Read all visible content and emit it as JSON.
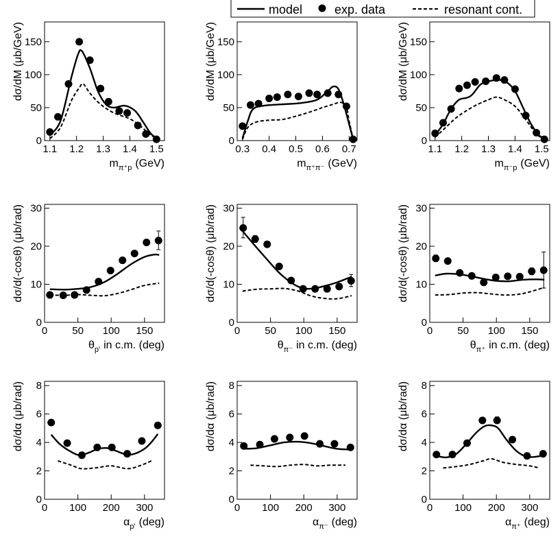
{
  "legend": {
    "model": "model",
    "data": "exp. data",
    "resonant": "resonant cont."
  },
  "chart_data": [
    {
      "type": "line",
      "panel": "row1-col1",
      "ylabel": "dσ/dM (μb/GeV)",
      "xlabel_main": "m",
      "xlabel_sub": "π⁺p",
      "xlabel_unit": "(GeV)",
      "xlim": [
        1.08,
        1.53
      ],
      "ylim": [
        0,
        180
      ],
      "xticks": [
        1.1,
        1.2,
        1.3,
        1.4,
        1.5
      ],
      "xtick_labels": [
        "1.1",
        "1.2",
        "1.3",
        "1.4",
        "1.5"
      ],
      "yticks": [
        0,
        50,
        100,
        150
      ],
      "ytick_labels": [
        "0",
        "50",
        "100",
        "150"
      ],
      "series": [
        {
          "name": "model",
          "x": [
            1.1,
            1.14,
            1.18,
            1.205,
            1.22,
            1.25,
            1.28,
            1.31,
            1.34,
            1.38,
            1.42,
            1.45,
            1.48,
            1.51
          ],
          "values": [
            8,
            30,
            95,
            130,
            136,
            110,
            75,
            55,
            50,
            53,
            45,
            28,
            10,
            2
          ]
        },
        {
          "name": "exp. data",
          "x": [
            1.1,
            1.13,
            1.17,
            1.21,
            1.25,
            1.29,
            1.32,
            1.36,
            1.39,
            1.43,
            1.46,
            1.5
          ],
          "values": [
            13,
            36,
            86,
            150,
            122,
            79,
            59,
            45,
            42,
            23,
            10,
            2
          ]
        },
        {
          "name": "resonant cont.",
          "x": [
            1.1,
            1.14,
            1.18,
            1.21,
            1.225,
            1.25,
            1.29,
            1.34,
            1.4,
            1.44,
            1.48,
            1.51
          ],
          "values": [
            3,
            20,
            60,
            80,
            86,
            72,
            55,
            42,
            33,
            22,
            8,
            2
          ]
        }
      ],
      "errors": []
    },
    {
      "type": "line",
      "panel": "row1-col2",
      "ylabel": "dσ/dM (μb/GeV)",
      "xlabel_main": "m",
      "xlabel_sub": "π⁺π⁻",
      "xlabel_unit": "(GeV)",
      "xlim": [
        0.28,
        0.73
      ],
      "ylim": [
        0,
        180
      ],
      "xticks": [
        0.3,
        0.4,
        0.5,
        0.6,
        0.7
      ],
      "xtick_labels": [
        "0.3",
        "0.4",
        "0.5",
        "0.6",
        "0.7"
      ],
      "yticks": [
        0,
        50,
        100,
        150
      ],
      "ytick_labels": [
        "0",
        "50",
        "100",
        "150"
      ],
      "series": [
        {
          "name": "model",
          "x": [
            0.3,
            0.32,
            0.34,
            0.38,
            0.45,
            0.52,
            0.58,
            0.62,
            0.64,
            0.66,
            0.68,
            0.7,
            0.715
          ],
          "values": [
            3,
            30,
            48,
            53,
            55,
            57,
            62,
            75,
            82,
            78,
            55,
            25,
            2
          ]
        },
        {
          "name": "exp. data",
          "x": [
            0.3,
            0.33,
            0.36,
            0.4,
            0.43,
            0.47,
            0.51,
            0.55,
            0.58,
            0.62,
            0.66,
            0.69,
            0.715
          ],
          "values": [
            22,
            54,
            56,
            64,
            66,
            70,
            67,
            72,
            70,
            72,
            70,
            52,
            2
          ]
        },
        {
          "name": "resonant cont.",
          "x": [
            0.3,
            0.32,
            0.35,
            0.4,
            0.45,
            0.5,
            0.55,
            0.6,
            0.64,
            0.67,
            0.69,
            0.7,
            0.715
          ],
          "values": [
            2,
            20,
            28,
            31,
            32,
            37,
            43,
            50,
            55,
            58,
            50,
            30,
            2
          ]
        }
      ],
      "errors": []
    },
    {
      "type": "line",
      "panel": "row1-col3",
      "ylabel": "dσ/dM (μb/GeV)",
      "xlabel_main": "m",
      "xlabel_sub": "π⁻p",
      "xlabel_unit": "(GeV)",
      "xlim": [
        1.08,
        1.53
      ],
      "ylim": [
        0,
        180
      ],
      "xticks": [
        1.1,
        1.2,
        1.3,
        1.4,
        1.5
      ],
      "xtick_labels": [
        "1.1",
        "1.2",
        "1.3",
        "1.4",
        "1.5"
      ],
      "yticks": [
        0,
        50,
        100,
        150
      ],
      "ytick_labels": [
        "0",
        "50",
        "100",
        "150"
      ],
      "series": [
        {
          "name": "model",
          "x": [
            1.1,
            1.13,
            1.16,
            1.19,
            1.22,
            1.24,
            1.27,
            1.3,
            1.34,
            1.37,
            1.4,
            1.43,
            1.46,
            1.49,
            1.51
          ],
          "values": [
            8,
            25,
            48,
            62,
            65,
            70,
            85,
            90,
            92,
            88,
            75,
            50,
            25,
            8,
            2
          ]
        },
        {
          "name": "exp. data",
          "x": [
            1.1,
            1.13,
            1.16,
            1.19,
            1.22,
            1.25,
            1.29,
            1.33,
            1.36,
            1.4,
            1.44,
            1.48,
            1.51
          ],
          "values": [
            11,
            27,
            48,
            79,
            84,
            89,
            90,
            95,
            92,
            78,
            38,
            12,
            2
          ]
        },
        {
          "name": "resonant cont.",
          "x": [
            1.1,
            1.14,
            1.18,
            1.22,
            1.26,
            1.3,
            1.33,
            1.36,
            1.4,
            1.44,
            1.48,
            1.51
          ],
          "values": [
            5,
            20,
            35,
            46,
            55,
            62,
            66,
            62,
            52,
            32,
            10,
            2
          ]
        }
      ],
      "errors": []
    },
    {
      "type": "line",
      "panel": "row2-col1",
      "ylabel": "dσ/d(-cosθ) (μb/rad)",
      "xlabel_main": "θ",
      "xlabel_sub": "p'",
      "xlabel_unit": "in c.m. (deg)",
      "xlim": [
        0,
        180
      ],
      "ylim": [
        0,
        31
      ],
      "xticks": [
        0,
        50,
        100,
        150
      ],
      "xtick_labels": [
        "0",
        "50",
        "100",
        "150"
      ],
      "yticks": [
        0,
        10,
        20,
        30
      ],
      "ytick_labels": [
        "0",
        "10",
        "20",
        "30"
      ],
      "series": [
        {
          "name": "model",
          "x": [
            8,
            30,
            50,
            70,
            90,
            110,
            130,
            150,
            165,
            172
          ],
          "values": [
            8.7,
            8.6,
            8.8,
            9.3,
            10.6,
            12.8,
            15.3,
            17.2,
            17.8,
            17.7
          ]
        },
        {
          "name": "exp. data",
          "x": [
            8,
            28,
            45,
            63,
            81,
            99,
            117,
            135,
            153,
            171
          ],
          "values": [
            7.2,
            7.1,
            7.2,
            8.5,
            10.7,
            13.6,
            16.3,
            18.1,
            21.0,
            21.5
          ]
        },
        {
          "name": "resonant cont.",
          "x": [
            8,
            30,
            50,
            70,
            90,
            110,
            130,
            150,
            172
          ],
          "values": [
            7.2,
            7.1,
            7.3,
            7.1,
            7.0,
            7.6,
            8.6,
            9.7,
            10.3
          ]
        }
      ],
      "errors": [
        {
          "x": 171,
          "y": 21.5,
          "lo": 19.1,
          "hi": 24.0
        }
      ]
    },
    {
      "type": "line",
      "panel": "row2-col2",
      "ylabel": "dσ/d(-cosθ) (μb/rad)",
      "xlabel_main": "θ",
      "xlabel_sub": "π⁻",
      "xlabel_unit": "in c.m. (deg)",
      "xlim": [
        0,
        180
      ],
      "ylim": [
        0,
        31
      ],
      "xticks": [
        0,
        50,
        100,
        150
      ],
      "xtick_labels": [
        "0",
        "50",
        "100",
        "150"
      ],
      "yticks": [
        0,
        10,
        20,
        30
      ],
      "ytick_labels": [
        "0",
        "10",
        "20",
        "30"
      ],
      "series": [
        {
          "name": "model",
          "x": [
            8,
            25,
            45,
            65,
            85,
            100,
            115,
            130,
            150,
            172
          ],
          "values": [
            24.0,
            20.5,
            16.5,
            12.7,
            10.0,
            8.9,
            8.9,
            9.5,
            10.5,
            12.0
          ]
        },
        {
          "name": "exp. data",
          "x": [
            9,
            27,
            45,
            63,
            81,
            99,
            117,
            135,
            153,
            171
          ],
          "values": [
            24.8,
            21.9,
            20.5,
            14.7,
            11.0,
            8.8,
            8.8,
            8.8,
            9.4,
            10.9
          ]
        },
        {
          "name": "resonant cont.",
          "x": [
            8,
            30,
            50,
            70,
            90,
            110,
            130,
            150,
            172
          ],
          "values": [
            8.2,
            8.7,
            8.8,
            8.9,
            8.3,
            7.0,
            6.3,
            6.2,
            7.0
          ]
        }
      ],
      "errors": [
        {
          "x": 9,
          "y": 24.8,
          "lo": 22.2,
          "hi": 27.6
        },
        {
          "x": 27,
          "y": 21.9,
          "lo": 21.0,
          "hi": 22.8
        },
        {
          "x": 171,
          "y": 10.9,
          "lo": 9.4,
          "hi": 12.6
        }
      ]
    },
    {
      "type": "line",
      "panel": "row2-col3",
      "ylabel": "dσ/d(-cosθ) (μb/rad)",
      "xlabel_main": "θ",
      "xlabel_sub": "π⁺",
      "xlabel_unit": "in c.m. (deg)",
      "xlim": [
        0,
        180
      ],
      "ylim": [
        0,
        31
      ],
      "xticks": [
        0,
        50,
        100,
        150
      ],
      "xtick_labels": [
        "0",
        "50",
        "100",
        "150"
      ],
      "yticks": [
        0,
        10,
        20,
        30
      ],
      "ytick_labels": [
        "0",
        "10",
        "20",
        "30"
      ],
      "series": [
        {
          "name": "model",
          "x": [
            8,
            25,
            45,
            65,
            85,
            100,
            120,
            140,
            160,
            172
          ],
          "values": [
            12.3,
            12.8,
            12.6,
            12.0,
            11.3,
            10.9,
            10.8,
            11.2,
            11.3,
            11.2
          ]
        },
        {
          "name": "exp. data",
          "x": [
            9,
            27,
            45,
            63,
            81,
            99,
            117,
            135,
            153,
            171
          ],
          "values": [
            16.8,
            16.1,
            13.0,
            12.2,
            10.5,
            11.8,
            12.1,
            12.0,
            13.4,
            13.7
          ]
        },
        {
          "name": "resonant cont.",
          "x": [
            8,
            30,
            50,
            70,
            90,
            110,
            130,
            150,
            172
          ],
          "values": [
            7.2,
            7.3,
            7.7,
            7.8,
            7.5,
            7.2,
            7.3,
            8.0,
            9.2
          ]
        }
      ],
      "errors": [
        {
          "x": 9,
          "y": 16.8,
          "lo": 16.0,
          "hi": 17.7
        },
        {
          "x": 153,
          "y": 13.4,
          "lo": 12.5,
          "hi": 14.3
        },
        {
          "x": 171,
          "y": 13.7,
          "lo": 9.0,
          "hi": 18.5
        }
      ]
    },
    {
      "type": "line",
      "panel": "row3-col1",
      "ylabel": "dσ/dα (μb/rad)",
      "xlabel_main": "α",
      "xlabel_sub": "p'",
      "xlabel_unit": "(deg)",
      "xlim": [
        0,
        360
      ],
      "ylim": [
        0,
        8.3
      ],
      "xticks": [
        0,
        100,
        200,
        300
      ],
      "xtick_labels": [
        "0",
        "100",
        "200",
        "300"
      ],
      "yticks": [
        0,
        2,
        4,
        6,
        8
      ],
      "ytick_labels": [
        "0",
        "2",
        "4",
        "6",
        "8"
      ],
      "series": [
        {
          "name": "model",
          "x": [
            20,
            45,
            75,
            105,
            135,
            160,
            190,
            215,
            245,
            270,
            300,
            320,
            340
          ],
          "values": [
            4.55,
            3.9,
            3.4,
            3.1,
            3.3,
            3.55,
            3.6,
            3.4,
            3.15,
            3.2,
            3.55,
            4.0,
            4.6
          ]
        },
        {
          "name": "exp. data",
          "x": [
            20,
            68,
            112,
            158,
            202,
            248,
            292,
            340
          ],
          "values": [
            5.4,
            3.95,
            3.1,
            3.65,
            3.65,
            3.2,
            4.1,
            5.2
          ]
        },
        {
          "name": "resonant cont.",
          "x": [
            40,
            80,
            110,
            150,
            200,
            250,
            290,
            325
          ],
          "values": [
            2.7,
            2.4,
            2.15,
            2.2,
            2.35,
            2.15,
            2.4,
            2.75
          ]
        }
      ],
      "errors": []
    },
    {
      "type": "line",
      "panel": "row3-col2",
      "ylabel": "dσ/dα (μb/rad)",
      "xlabel_main": "α",
      "xlabel_sub": "π⁻",
      "xlabel_unit": "(deg)",
      "xlim": [
        0,
        360
      ],
      "ylim": [
        0,
        8.3
      ],
      "xticks": [
        0,
        100,
        200,
        300
      ],
      "xtick_labels": [
        "0",
        "100",
        "200",
        "300"
      ],
      "yticks": [
        0,
        2,
        4,
        6,
        8
      ],
      "ytick_labels": [
        "0",
        "2",
        "4",
        "6",
        "8"
      ],
      "series": [
        {
          "name": "model",
          "x": [
            20,
            60,
            100,
            140,
            180,
            220,
            260,
            300,
            340
          ],
          "values": [
            3.55,
            3.6,
            3.8,
            4.0,
            4.05,
            3.95,
            3.75,
            3.55,
            3.5
          ]
        },
        {
          "name": "exp. data",
          "x": [
            20,
            68,
            112,
            158,
            202,
            248,
            292,
            340
          ],
          "values": [
            3.75,
            3.85,
            4.25,
            4.35,
            4.45,
            3.9,
            3.9,
            3.65
          ]
        },
        {
          "name": "resonant cont.",
          "x": [
            40,
            80,
            120,
            160,
            200,
            240,
            280,
            325
          ],
          "values": [
            2.4,
            2.35,
            2.3,
            2.4,
            2.45,
            2.35,
            2.4,
            2.4
          ]
        }
      ],
      "errors": []
    },
    {
      "type": "line",
      "panel": "row3-col3",
      "ylabel": "dσ/dα (μb/rad)",
      "xlabel_main": "α",
      "xlabel_sub": "π⁺",
      "xlabel_unit": "(deg)",
      "xlim": [
        0,
        360
      ],
      "ylim": [
        0,
        8.3
      ],
      "xticks": [
        0,
        100,
        200,
        300
      ],
      "xtick_labels": [
        "0",
        "100",
        "200",
        "300"
      ],
      "yticks": [
        0,
        2,
        4,
        6,
        8
      ],
      "ytick_labels": [
        "0",
        "2",
        "4",
        "6",
        "8"
      ],
      "series": [
        {
          "name": "model",
          "x": [
            20,
            50,
            80,
            110,
            140,
            165,
            185,
            205,
            230,
            260,
            290,
            320,
            340
          ],
          "values": [
            3.05,
            2.95,
            3.2,
            3.9,
            4.7,
            5.15,
            5.2,
            5.0,
            4.2,
            3.4,
            3.0,
            3.0,
            3.1
          ]
        },
        {
          "name": "exp. data",
          "x": [
            20,
            68,
            112,
            158,
            202,
            248,
            292,
            340
          ],
          "values": [
            3.15,
            3.15,
            3.95,
            5.55,
            5.55,
            4.2,
            3.05,
            3.2
          ]
        },
        {
          "name": "resonant cont.",
          "x": [
            40,
            80,
            120,
            160,
            185,
            220,
            260,
            300,
            330
          ],
          "values": [
            2.2,
            2.3,
            2.45,
            2.7,
            2.85,
            2.6,
            2.45,
            2.35,
            2.2
          ]
        }
      ],
      "errors": [
        {
          "x": 202,
          "y": 5.55,
          "lo": 5.35,
          "hi": 5.8
        }
      ]
    }
  ]
}
